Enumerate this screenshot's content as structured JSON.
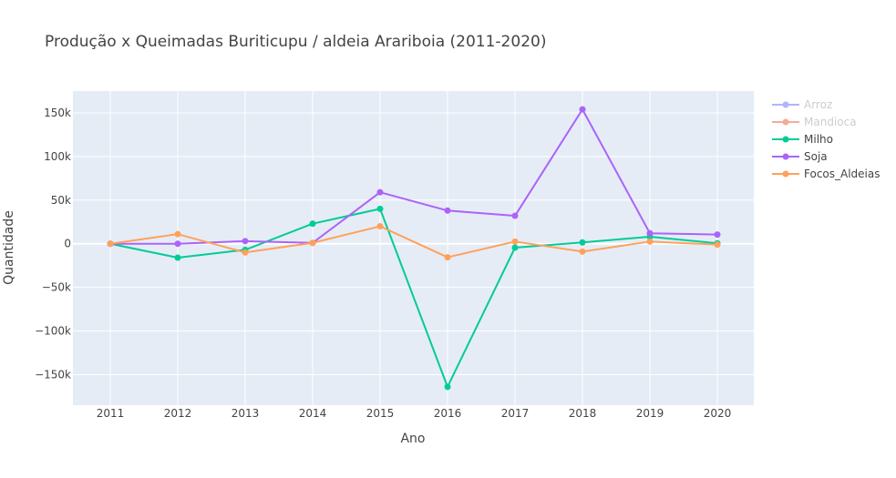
{
  "chart_data": {
    "type": "line",
    "title": "Produção x Queimadas Buriticupu / aldeia Arariboia  (2011-2020)",
    "xlabel": "Ano",
    "ylabel": "Quantidade",
    "x": [
      2011,
      2012,
      2013,
      2014,
      2015,
      2016,
      2017,
      2018,
      2019,
      2020
    ],
    "xticks": [
      "2011",
      "2012",
      "2013",
      "2014",
      "2015",
      "2016",
      "2017",
      "2018",
      "2019",
      "2020"
    ],
    "ylim": [
      -185000,
      175000
    ],
    "yticks": [
      150000,
      100000,
      50000,
      0,
      -50000,
      -100000,
      -150000
    ],
    "ytick_labels": [
      "150k",
      "100k",
      "50k",
      "0",
      "−50k",
      "−100k",
      "−150k"
    ],
    "grid": true,
    "legend_position": "top-right",
    "series": [
      {
        "name": "Arroz",
        "color": "#636efa",
        "visible": false,
        "values": [
          0,
          0,
          0,
          0,
          0,
          0,
          0,
          0,
          0,
          0
        ]
      },
      {
        "name": "Mandioca",
        "color": "#ef553b",
        "visible": false,
        "values": [
          0,
          0,
          0,
          0,
          0,
          0,
          0,
          0,
          0,
          0
        ]
      },
      {
        "name": "Milho",
        "color": "#00cc96",
        "visible": true,
        "values": [
          0,
          -16000,
          -7000,
          23000,
          40000,
          -164000,
          -4500,
          1500,
          8000,
          500
        ]
      },
      {
        "name": "Soja",
        "color": "#ab63fa",
        "visible": true,
        "values": [
          0,
          0,
          3000,
          1000,
          59000,
          38000,
          32000,
          154000,
          12000,
          10500
        ]
      },
      {
        "name": "Focos_Aldeias",
        "color": "#ffa15a",
        "visible": true,
        "values": [
          0,
          11000,
          -10000,
          1000,
          20000,
          -15500,
          2500,
          -9000,
          2500,
          -1000
        ]
      }
    ]
  }
}
